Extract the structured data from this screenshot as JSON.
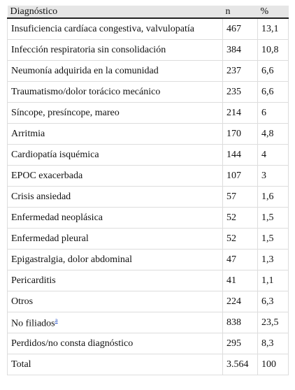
{
  "table": {
    "header": [
      "Diagnóstico",
      "n",
      "%"
    ],
    "rows": [
      [
        "Insuficiencia cardíaca congestiva, valvulopatía",
        "467",
        "13,1"
      ],
      [
        "Infección respiratoria sin consolidación",
        "384",
        "10,8"
      ],
      [
        "Neumonía adquirida en la comunidad",
        "237",
        "6,6"
      ],
      [
        "Traumatismo/dolor torácico mecánico",
        "235",
        "6,6"
      ],
      [
        "Síncope, presíncope, mareo",
        "214",
        "6"
      ],
      [
        "Arritmia",
        "170",
        "4,8"
      ],
      [
        "Cardiopatía isquémica",
        "144",
        "4"
      ],
      [
        "EPOC exacerbada",
        "107",
        "3"
      ],
      [
        "Crisis ansiedad",
        "57",
        "1,6"
      ],
      [
        "Enfermedad neoplásica",
        "52",
        "1,5"
      ],
      [
        "Enfermedad pleural",
        "52",
        "1,5"
      ],
      [
        "Epigastralgia, dolor abdominal",
        "47",
        "1,3"
      ],
      [
        "Pericarditis",
        "41",
        "1,1"
      ],
      [
        "Otros",
        "224",
        "6,3"
      ],
      [
        "No filiados",
        "838",
        "23,5"
      ],
      [
        "Perdidos/no consta diagnóstico",
        "295",
        "8,3"
      ],
      [
        "Total",
        "3.564",
        "100"
      ]
    ],
    "footnote_marker": "a"
  }
}
